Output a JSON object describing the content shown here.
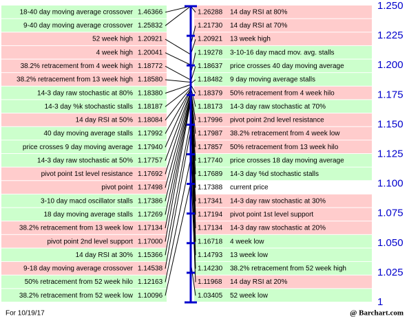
{
  "chart_data": {
    "type": "pivot-levels",
    "ylim": [
      1,
      1.25
    ],
    "yticks": [
      {
        "value": 1.25,
        "label": "1.250"
      },
      {
        "value": 1.225,
        "label": "1.225"
      },
      {
        "value": 1.2,
        "label": "1.200"
      },
      {
        "value": 1.175,
        "label": "1.175"
      },
      {
        "value": 1.15,
        "label": "1.150"
      },
      {
        "value": 1.125,
        "label": "1.125"
      },
      {
        "value": 1.1,
        "label": "1.100"
      },
      {
        "value": 1.075,
        "label": "1.075"
      },
      {
        "value": 1.05,
        "label": "1.050"
      },
      {
        "value": 1.025,
        "label": "1.025"
      },
      1
    ],
    "axis_color": "#0000cc",
    "left": [
      {
        "label": "18-40 day moving average crossover",
        "value": 1.46366,
        "color": "#ccffcc"
      },
      {
        "label": "9-40 day moving average crossover",
        "value": 1.25832,
        "color": "#ccffcc"
      },
      {
        "label": "52 week high",
        "value": 1.20921,
        "color": "#ffcccc"
      },
      {
        "label": "4 week high",
        "value": 1.20041,
        "color": "#ffcccc"
      },
      {
        "label": "38.2% retracement from 4 week high",
        "value": 1.18772,
        "color": "#ffcccc"
      },
      {
        "label": "38.2% retracement from 13 week high",
        "value": 1.1858,
        "value_label": "1.18580",
        "color": "#ffcccc"
      },
      {
        "label": "14-3 day raw stochastic at 80%",
        "value": 1.1838,
        "value_label": "1.18380",
        "color": "#ccffcc"
      },
      {
        "label": "14-3 day %k stochastic stalls",
        "value": 1.18187,
        "color": "#ccffcc"
      },
      {
        "label": "14 day RSI at 50%",
        "value": 1.18084,
        "color": "#ffcccc"
      },
      {
        "label": "40 day moving average stalls",
        "value": 1.17992,
        "color": "#ccffcc"
      },
      {
        "label": "price crosses 9 day moving average",
        "value": 1.1794,
        "value_label": "1.17940",
        "color": "#ccffcc"
      },
      {
        "label": "14-3 day raw stochastic at 50%",
        "value": 1.17757,
        "color": "#ccffcc"
      },
      {
        "label": "pivot point 1st level resistance",
        "value": 1.17692,
        "color": "#ffcccc"
      },
      {
        "label": "pivot point",
        "value": 1.17498,
        "color": "#ffcccc"
      },
      {
        "label": "3-10 day macd oscillator stalls",
        "value": 1.17386,
        "color": "#ccffcc"
      },
      {
        "label": "18 day moving average stalls",
        "value": 1.17269,
        "color": "#ccffcc"
      },
      {
        "label": "38.2% retracement from 13 week low",
        "value": 1.17134,
        "color": "#ffcccc"
      },
      {
        "label": "pivot point 2nd level support",
        "value": 1.17,
        "value_label": "1.17000",
        "color": "#ffcccc"
      },
      {
        "label": "14 day RSI at 30%",
        "value": 1.15366,
        "color": "#ccffcc"
      },
      {
        "label": "9-18 day moving average crossover",
        "value": 1.14538,
        "color": "#ffcccc"
      },
      {
        "label": "50% retracement from 52 week hilo",
        "value": 1.12163,
        "color": "#ccffcc"
      },
      {
        "label": "38.2% retracement from 52 week low",
        "value": 1.10096,
        "color": "#ccffcc"
      }
    ],
    "right": [
      {
        "label": "14 day RSI at 80%",
        "value": 1.26288,
        "color": "#ffcccc"
      },
      {
        "label": "14 day RSI at 70%",
        "value": 1.2173,
        "value_label": "1.21730",
        "color": "#ffcccc"
      },
      {
        "label": "13 week high",
        "value": 1.20921,
        "color": "#ffcccc"
      },
      {
        "label": "3-10-16 day macd mov. avg. stalls",
        "value": 1.19278,
        "color": "#ccffcc"
      },
      {
        "label": "price crosses 40 day moving average",
        "value": 1.18637,
        "color": "#ccffcc"
      },
      {
        "label": "9 day moving average stalls",
        "value": 1.18482,
        "color": "#ccffcc"
      },
      {
        "label": "50% retracement from 4 week hilo",
        "value": 1.18379,
        "color": "#ffcccc"
      },
      {
        "label": "14-3 day raw stochastic at 70%",
        "value": 1.18173,
        "color": "#ccffcc"
      },
      {
        "label": "pivot point 2nd level resistance",
        "value": 1.17996,
        "color": "#ffcccc"
      },
      {
        "label": "38.2% retracement from 4 week low",
        "value": 1.17987,
        "color": "#ffcccc"
      },
      {
        "label": "50% retracement from 13 week hilo",
        "value": 1.17857,
        "color": "#ffcccc"
      },
      {
        "label": "price crosses 18 day moving average",
        "value": 1.1774,
        "value_label": "1.17740",
        "color": "#ccffcc"
      },
      {
        "label": "14-3 day %d stochastic stalls",
        "value": 1.17689,
        "color": "#ccffcc"
      },
      {
        "label": "current price",
        "value": 1.17388,
        "color": "#ffffff"
      },
      {
        "label": "14-3 day raw stochastic at 30%",
        "value": 1.17341,
        "color": "#ffcccc"
      },
      {
        "label": "pivot point 1st level support",
        "value": 1.17194,
        "color": "#ffcccc"
      },
      {
        "label": "14-3 day raw stochastic at 20%",
        "value": 1.17134,
        "color": "#ffcccc"
      },
      {
        "label": "4 week low",
        "value": 1.16718,
        "color": "#ccffcc"
      },
      {
        "label": "13 week low",
        "value": 1.14793,
        "color": "#ccffcc"
      },
      {
        "label": "38.2% retracement from 52 week high",
        "value": 1.1423,
        "value_label": "1.14230",
        "color": "#ccffcc"
      },
      {
        "label": "14 day RSI at 20%",
        "value": 1.11968,
        "color": "#ffcccc"
      },
      {
        "label": "52 week low",
        "value": 1.03405,
        "color": "#ccffcc"
      }
    ],
    "footer_left": "For 10/19/17",
    "footer_right": "@ Barchart.com"
  }
}
